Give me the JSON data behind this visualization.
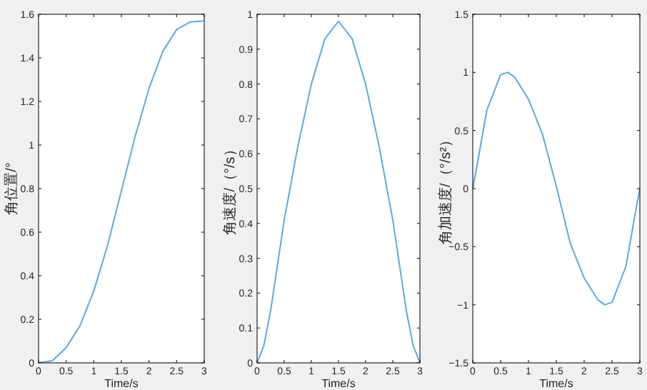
{
  "chart_data": [
    {
      "type": "line",
      "xlabel": "Time/s",
      "ylabel": "角位置/°",
      "xlim": [
        0,
        3
      ],
      "xticks": [
        0,
        0.5,
        1,
        1.5,
        2,
        2.5,
        3
      ],
      "ylim": [
        0,
        1.6
      ],
      "yticks": [
        0,
        0.2,
        0.4,
        0.6,
        0.8,
        1,
        1.2,
        1.4,
        1.6
      ],
      "x": [
        0,
        0.25,
        0.5,
        0.75,
        1,
        1.25,
        1.5,
        1.75,
        2,
        2.25,
        2.5,
        2.75,
        3
      ],
      "series": [
        {
          "color": "#5aa9e6",
          "values": [
            0,
            0.01,
            0.07,
            0.17,
            0.33,
            0.54,
            0.79,
            1.04,
            1.26,
            1.43,
            1.53,
            1.565,
            1.57
          ]
        }
      ]
    },
    {
      "type": "line",
      "xlabel": "Time/s",
      "ylabel": "角速度/（°/s）",
      "xlim": [
        0,
        3
      ],
      "xticks": [
        0,
        0.5,
        1,
        1.5,
        2,
        2.5,
        3
      ],
      "ylim": [
        0,
        1
      ],
      "yticks": [
        0,
        0.1,
        0.2,
        0.3,
        0.4,
        0.5,
        0.6,
        0.7,
        0.8,
        0.9,
        1
      ],
      "x": [
        0,
        0.125,
        0.25,
        0.5,
        0.75,
        1,
        1.25,
        1.5,
        1.75,
        2,
        2.25,
        2.5,
        2.75,
        2.875,
        3
      ],
      "series": [
        {
          "color": "#5aa9e6",
          "values": [
            0,
            0.05,
            0.15,
            0.41,
            0.62,
            0.8,
            0.93,
            0.98,
            0.93,
            0.8,
            0.62,
            0.41,
            0.15,
            0.05,
            0
          ]
        }
      ]
    },
    {
      "type": "line",
      "xlabel": "Time/s",
      "ylabel": "角加速度/（°/s²）",
      "xlim": [
        0,
        3
      ],
      "xticks": [
        0,
        0.5,
        1,
        1.5,
        2,
        2.5,
        3
      ],
      "ylim": [
        -1.5,
        1.5
      ],
      "yticks": [
        -1.5,
        -1,
        -0.5,
        0,
        0.5,
        1,
        1.5
      ],
      "x": [
        0,
        0.1,
        0.25,
        0.5,
        0.63,
        0.75,
        1,
        1.25,
        1.5,
        1.75,
        2,
        2.25,
        2.37,
        2.5,
        2.75,
        2.9,
        3
      ],
      "series": [
        {
          "color": "#5aa9e6",
          "values": [
            0,
            0.26,
            0.67,
            0.98,
            1,
            0.96,
            0.77,
            0.47,
            0.02,
            -0.47,
            -0.77,
            -0.96,
            -1,
            -0.98,
            -0.67,
            -0.26,
            0
          ]
        }
      ]
    }
  ]
}
